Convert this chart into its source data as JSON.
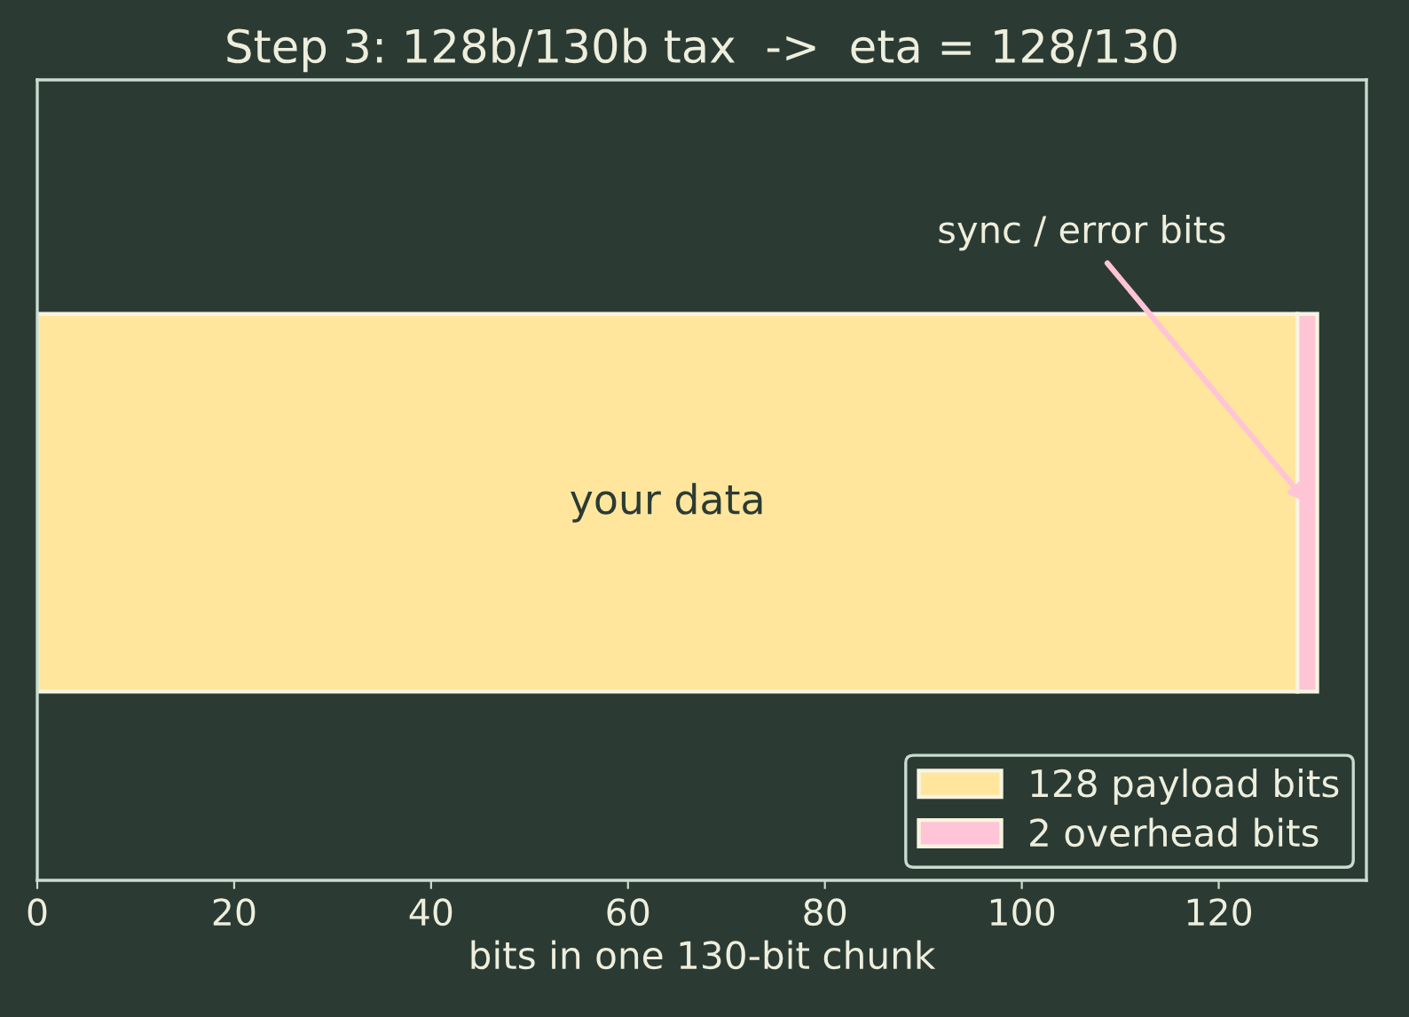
{
  "chart_data": {
    "type": "bar",
    "orientation": "horizontal",
    "stacked": true,
    "title": "Step 3: 128b/130b tax  ->  eta = 128/130",
    "xlabel": "bits in one 130-bit chunk",
    "categories": [
      null
    ],
    "series": [
      {
        "name": "128 payload bits",
        "color": "#ffe69c",
        "values": [
          128
        ]
      },
      {
        "name": "2 overhead bits",
        "color": "#ffc4d6",
        "values": [
          2
        ]
      }
    ],
    "xlim": [
      0,
      135
    ],
    "xticks": [
      0,
      20,
      40,
      60,
      80,
      100,
      120
    ],
    "legend": "bottom right",
    "grid": false,
    "annotations": [
      "your data",
      "sync / error bits"
    ]
  }
}
